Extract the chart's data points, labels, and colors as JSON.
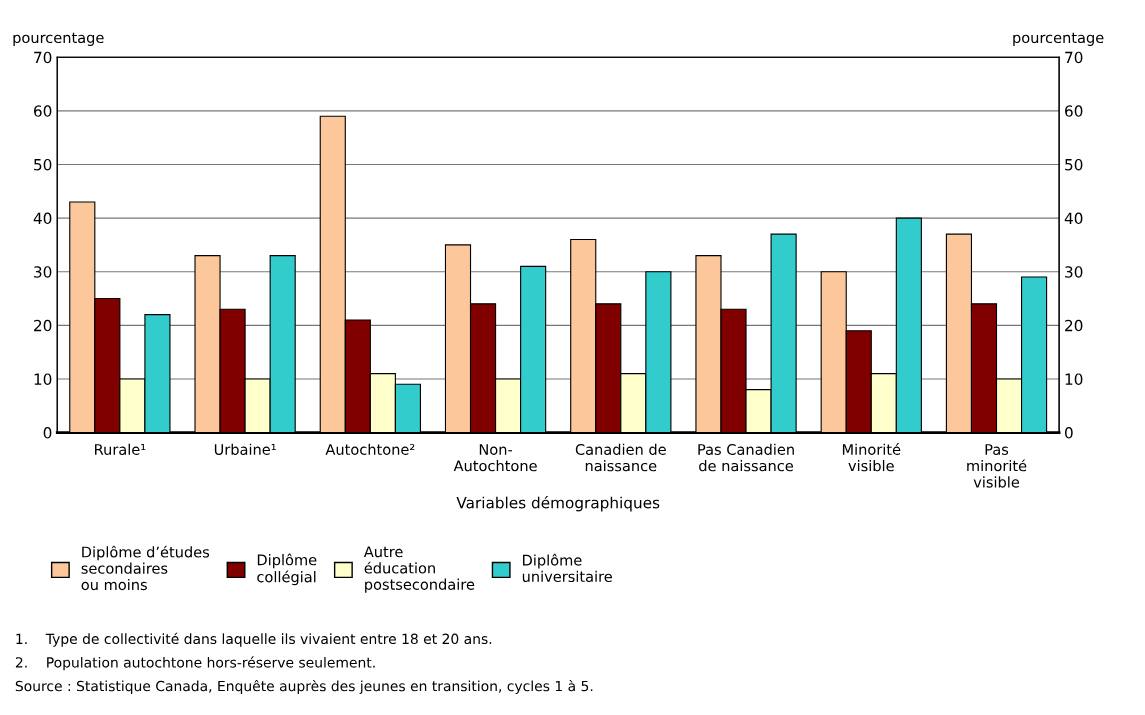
{
  "chart_data": {
    "type": "bar",
    "xlabel": "Variables démographiques",
    "ylabel": "pourcentage",
    "y2label": "pourcentage",
    "categories": [
      "Rurale¹",
      "Urbaine¹",
      "Autochtone²",
      "Non-\nAutochtone",
      "Canadien de\nnaissance",
      "Pas Canadien\nde naissance",
      "Minorité\nvisible",
      "Pas\nminorité\nvisible"
    ],
    "series": [
      {
        "name": "Diplôme d’études\nsecondaires\nou moins",
        "color": "#fcc89b",
        "values": [
          43,
          33,
          59,
          35,
          36,
          33,
          30,
          37
        ]
      },
      {
        "name": "Diplôme\ncollégial",
        "color": "#800000",
        "values": [
          25,
          23,
          21,
          24,
          24,
          23,
          19,
          24
        ]
      },
      {
        "name": "Autre\néducation\npostsecondaire",
        "color": "#ffffcc",
        "values": [
          10,
          10,
          11,
          10,
          11,
          8,
          11,
          10
        ]
      },
      {
        "name": "Diplôme\nuniversitaire",
        "color": "#33cccc",
        "values": [
          22,
          33,
          9,
          31,
          30,
          37,
          40,
          29
        ]
      }
    ],
    "ylim": [
      0,
      70
    ],
    "yticks": [
      0,
      10,
      20,
      30,
      40,
      50,
      60,
      70
    ],
    "y2lim": [
      0,
      70
    ],
    "y2ticks": [
      0,
      10,
      20,
      30,
      40,
      50,
      60,
      70
    ],
    "grid": "y",
    "legend": "bottom",
    "annotations": [
      "1.    Type de collectivité dans laquelle ils vivaient entre 18 et 20 ans.",
      "2.    Population autochtone hors-réserve seulement.",
      "Source : Statistique Canada, Enquête auprès des jeunes en transition, cycles 1 à 5."
    ]
  }
}
